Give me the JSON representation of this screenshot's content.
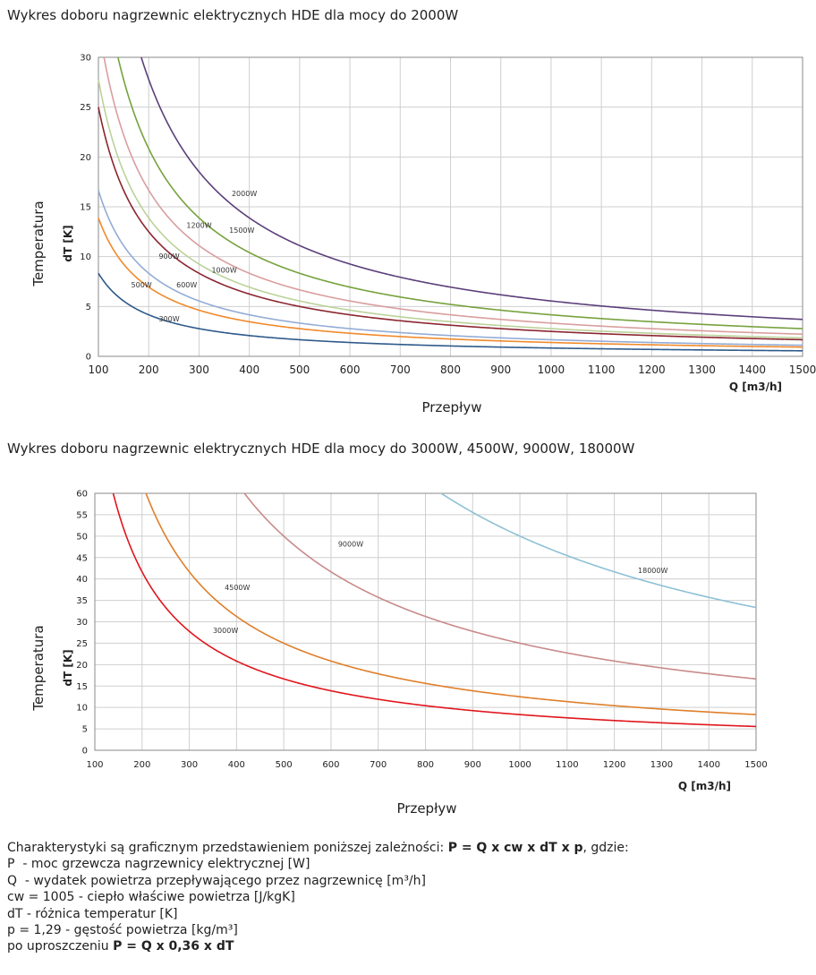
{
  "chart_data": [
    {
      "type": "line",
      "title": "Wykres doboru nagrzewnic elektrycznych HDE dla mocy do 2000W",
      "xlabel": "Przepływ",
      "xunit": "Q [m3/h]",
      "ylabel": "Temperatura",
      "yunit": "dT [K]",
      "xlim": [
        100,
        1500
      ],
      "ylim": [
        0,
        30
      ],
      "xticks": [
        100,
        200,
        300,
        400,
        500,
        600,
        700,
        800,
        900,
        1000,
        1100,
        1200,
        1300,
        1400,
        1500
      ],
      "yticks": [
        0,
        5,
        10,
        15,
        20,
        25,
        30
      ],
      "grid": true,
      "formula_coefficient": 0.36,
      "series": [
        {
          "name": "300W",
          "power": 300,
          "color": "#2e5a8a",
          "label_at": [
            220,
            3.5
          ]
        },
        {
          "name": "500W",
          "power": 500,
          "color": "#f08a2c",
          "label_at": [
            165,
            6.9
          ]
        },
        {
          "name": "600W",
          "power": 600,
          "color": "#93acd6",
          "label_at": [
            255,
            6.9
          ]
        },
        {
          "name": "900W",
          "power": 900,
          "color": "#8b2530",
          "label_at": [
            220,
            9.8
          ]
        },
        {
          "name": "1000W",
          "power": 1000,
          "color": "#bcd29a",
          "label_at": [
            325,
            8.4
          ]
        },
        {
          "name": "1200W",
          "power": 1200,
          "color": "#d99e9e",
          "label_at": [
            275,
            12.9
          ]
        },
        {
          "name": "1500W",
          "power": 1500,
          "color": "#76a23d",
          "label_at": [
            360,
            12.4
          ]
        },
        {
          "name": "2000W",
          "power": 2000,
          "color": "#5c3f7a",
          "label_at": [
            365,
            16.1
          ]
        }
      ]
    },
    {
      "type": "line",
      "title": "Wykres doboru nagrzewnic elektrycznych HDE dla mocy do 3000W, 4500W, 9000W, 18000W",
      "xlabel": "Przepływ",
      "xunit": "Q [m3/h]",
      "ylabel": "Temperatura",
      "yunit": "dT [K]",
      "xlim": [
        100,
        1500
      ],
      "ylim": [
        0,
        60
      ],
      "xticks": [
        100,
        200,
        300,
        400,
        500,
        600,
        700,
        800,
        900,
        1000,
        1100,
        1200,
        1300,
        1400,
        1500
      ],
      "yticks": [
        0,
        5,
        10,
        15,
        20,
        25,
        30,
        35,
        40,
        45,
        50,
        55,
        60
      ],
      "grid": true,
      "formula_coefficient": 0.36,
      "series": [
        {
          "name": "3000W",
          "power": 3000,
          "color": "#e0161d",
          "label_at": [
            350,
            27.4
          ]
        },
        {
          "name": "4500W",
          "power": 4500,
          "color": "#df7f2a",
          "label_at": [
            375,
            37.4
          ]
        },
        {
          "name": "9000W",
          "power": 9000,
          "color": "#c98a8a",
          "label_at": [
            615,
            47.6
          ]
        },
        {
          "name": "18000W",
          "power": 18000,
          "color": "#8ec1d6",
          "label_at": [
            1250,
            41.4
          ]
        }
      ]
    }
  ],
  "notes": {
    "intro": "Charakterystyki są graficznym przedstawieniem poniższej zależności: ",
    "formula": "P = Q x cw x dT x p",
    "intro_end": ", gdzie:",
    "p_symbol": "P",
    "p_desc": "  - moc grzewcza nagrzewnicy elektrycznej [W]",
    "q_symbol": "Q",
    "q_desc": "  - wydatek powietrza przepływającego przez nagrzewnicę [m³/h]",
    "cw_line": "cw = 1005 - ciepło właściwe powietrza [J/kgK]",
    "dt_line": "dT  - różnica temperatur [K]",
    "rho_line": "p = 1,29 - gęstość powietrza [kg/m³]",
    "simplified_prefix": "po uproszczeniu ",
    "simplified_formula": "P = Q x 0,36 x dT"
  }
}
